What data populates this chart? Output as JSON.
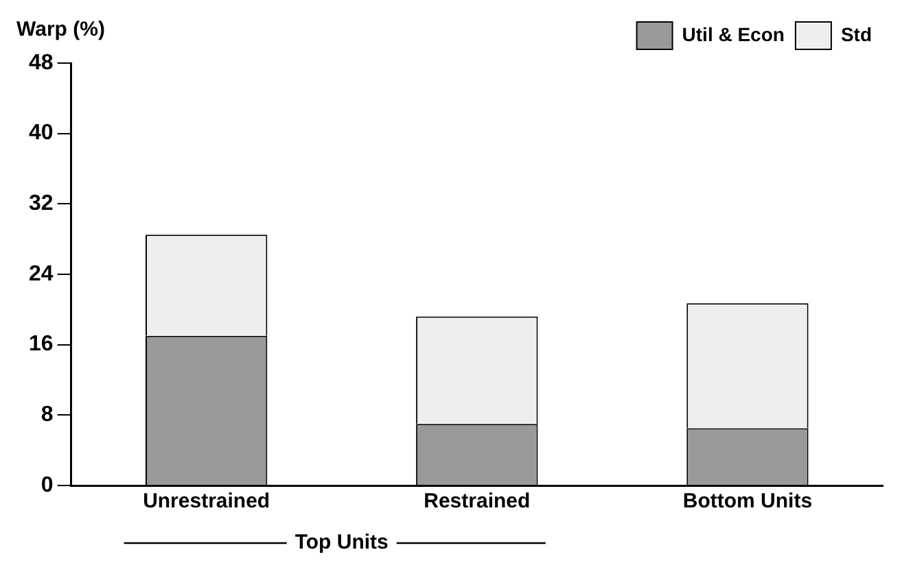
{
  "chart_data": {
    "type": "bar",
    "ylabel": "Warp (%)",
    "categories": [
      "Unrestrained",
      "Restrained",
      "Bottom Units"
    ],
    "stacked": true,
    "series": [
      {
        "name": "Util & Econ",
        "color": "#999999",
        "values": [
          17,
          7,
          6.5
        ]
      },
      {
        "name": "Std",
        "color": "#eeeeee",
        "values": [
          11.5,
          12.2,
          14.2
        ]
      }
    ],
    "ylim": [
      0,
      48
    ],
    "yticks": [
      0,
      8,
      16,
      24,
      32,
      40,
      48
    ],
    "grid": false,
    "legend": "top right",
    "annotations": [
      "Top Units"
    ]
  }
}
